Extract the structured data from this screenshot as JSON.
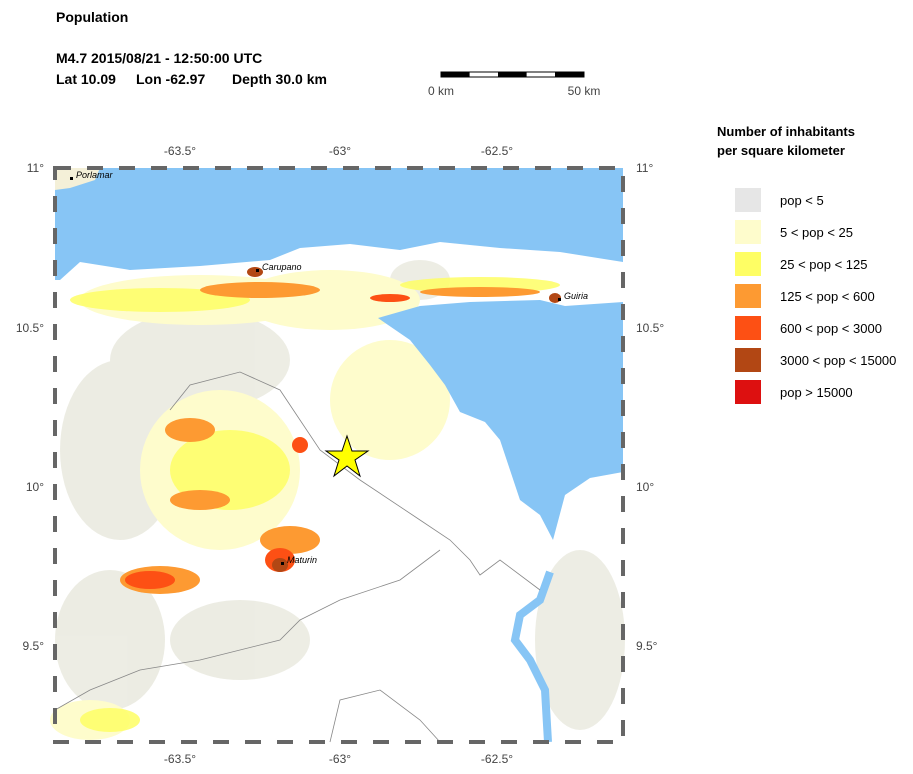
{
  "header": {
    "title": "Population",
    "event": "M4.7  2015/08/21 - 12:50:00 UTC",
    "lat": "Lat 10.09",
    "lon": "Lon -62.97",
    "depth": "Depth  30.0 km"
  },
  "scale_bar": {
    "start": "0 km",
    "end": "50 km"
  },
  "map": {
    "top_ticks": [
      "-63.5°",
      "-63°",
      "-62.5°"
    ],
    "bottom_ticks": [
      "-63.5°",
      "-63°",
      "-62.5°"
    ],
    "left_ticks": [
      "11°",
      "10.5°",
      "10°",
      "9.5°"
    ],
    "right_ticks": [
      "11°",
      "10.5°",
      "10°",
      "9.5°"
    ],
    "cities": [
      "Porlamar",
      "Carupano",
      "Guiria",
      "Maturin"
    ]
  },
  "legend": {
    "title": [
      "Number of inhabitants",
      "per square kilometer"
    ],
    "entries": [
      {
        "label": "pop < 5",
        "color": "#e6e6e6"
      },
      {
        "label": "5 < pop < 25",
        "color": "#fefccc"
      },
      {
        "label": "25 < pop < 125",
        "color": "#fefe64"
      },
      {
        "label": "125 < pop < 600",
        "color": "#fd9a32"
      },
      {
        "label": "600 < pop < 3000",
        "color": "#fd5014"
      },
      {
        "label": "3000 < pop < 15000",
        "color": "#b24714"
      },
      {
        "label": "pop > 15000",
        "color": "#dd1010"
      }
    ]
  }
}
